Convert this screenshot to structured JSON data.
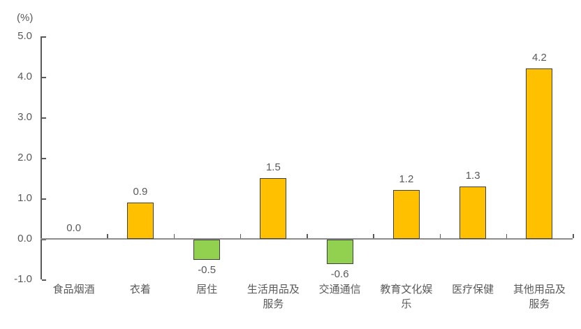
{
  "chart_data": {
    "type": "bar",
    "title": "",
    "unit_label": "(%)",
    "categories": [
      "食品烟酒",
      "衣着",
      "居住",
      "生活用品及服务",
      "交通通信",
      "教育文化娱乐",
      "医疗保健",
      "其他用品及服务"
    ],
    "category_label_lines": [
      [
        "食品烟酒"
      ],
      [
        "衣着"
      ],
      [
        "居住"
      ],
      [
        "生活用品及",
        "服务"
      ],
      [
        "交通通信"
      ],
      [
        "教育文化娱",
        "乐"
      ],
      [
        "医疗保健"
      ],
      [
        "其他用品及",
        "服务"
      ]
    ],
    "values": [
      0.0,
      0.9,
      -0.5,
      1.5,
      -0.6,
      1.2,
      1.3,
      4.2
    ],
    "value_labels": [
      "0.0",
      "0.9",
      "-0.5",
      "1.5",
      "-0.6",
      "1.2",
      "1.3",
      "4.2"
    ],
    "ylabel": "",
    "xlabel": "",
    "ylim": [
      -1.0,
      5.0
    ],
    "ytick_step": 1.0,
    "ytick_labels": [
      "5.0",
      "4.0",
      "3.0",
      "2.0",
      "1.0",
      "0.0",
      "-1.0"
    ],
    "grid": false,
    "legend": false,
    "colors": {
      "positive_bar": "#FFC000",
      "negative_bar": "#92D050",
      "bar_border": "#404040",
      "axis": "#595959",
      "zero_line": "#8C8C8C",
      "text": "#595959"
    }
  }
}
